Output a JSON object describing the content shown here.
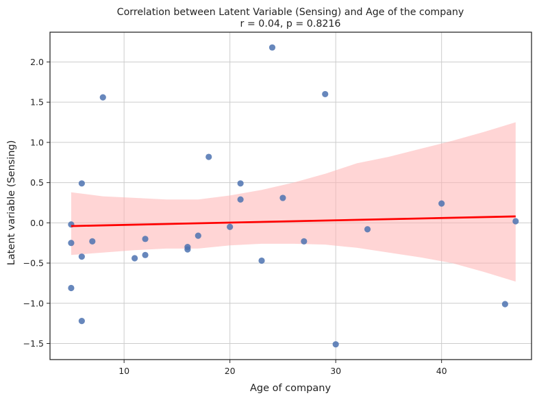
{
  "chart_data": {
    "type": "scatter",
    "title": "Correlation between Latent Variable (Sensing) and Age of the company",
    "subtitle": "r = 0.04, p = 0.8216",
    "xlabel": "Age of company",
    "ylabel": "Latent variable (Sensing)",
    "xlim": [
      3,
      48.5
    ],
    "ylim": [
      -1.7,
      2.37
    ],
    "xticks": [
      10,
      20,
      30,
      40
    ],
    "yticks": [
      -1.5,
      -1.0,
      -0.5,
      0.0,
      0.5,
      1.0,
      1.5,
      2.0
    ],
    "xtick_labels": [
      "10",
      "20",
      "30",
      "40"
    ],
    "ytick_labels": [
      "−1.5",
      "−1.0",
      "−0.5",
      "0.0",
      "0.5",
      "1.0",
      "1.5",
      "2.0"
    ],
    "grid": true,
    "points": [
      {
        "x": 5,
        "y": -0.02
      },
      {
        "x": 5,
        "y": -0.25
      },
      {
        "x": 5,
        "y": -0.81
      },
      {
        "x": 6,
        "y": 0.49
      },
      {
        "x": 6,
        "y": -0.42
      },
      {
        "x": 6,
        "y": -1.22
      },
      {
        "x": 7,
        "y": -0.23
      },
      {
        "x": 8,
        "y": 1.56
      },
      {
        "x": 11,
        "y": -0.44
      },
      {
        "x": 12,
        "y": -0.2
      },
      {
        "x": 12,
        "y": -0.4
      },
      {
        "x": 16,
        "y": -0.3
      },
      {
        "x": 16,
        "y": -0.33
      },
      {
        "x": 17,
        "y": -0.16
      },
      {
        "x": 18,
        "y": 0.82
      },
      {
        "x": 20,
        "y": -0.05
      },
      {
        "x": 21,
        "y": 0.49
      },
      {
        "x": 21,
        "y": 0.29
      },
      {
        "x": 23,
        "y": -0.47
      },
      {
        "x": 24,
        "y": 2.18
      },
      {
        "x": 25,
        "y": 0.31
      },
      {
        "x": 27,
        "y": -0.23
      },
      {
        "x": 29,
        "y": 1.6
      },
      {
        "x": 30,
        "y": -1.51
      },
      {
        "x": 33,
        "y": -0.08
      },
      {
        "x": 40,
        "y": 0.24
      },
      {
        "x": 46,
        "y": -1.01
      },
      {
        "x": 47,
        "y": 0.02
      }
    ],
    "regression": {
      "x": [
        5,
        47
      ],
      "y": [
        -0.04,
        0.08
      ]
    },
    "confidence_band": {
      "x": [
        5,
        8,
        11,
        14,
        17,
        20,
        23,
        26,
        29,
        32,
        35,
        38,
        41,
        44,
        47
      ],
      "upper": [
        0.38,
        0.33,
        0.31,
        0.29,
        0.29,
        0.34,
        0.41,
        0.5,
        0.61,
        0.74,
        0.82,
        0.92,
        1.02,
        1.13,
        1.25
      ],
      "lower": [
        -0.4,
        -0.37,
        -0.34,
        -0.32,
        -0.32,
        -0.28,
        -0.26,
        -0.26,
        -0.27,
        -0.31,
        -0.37,
        -0.43,
        -0.5,
        -0.61,
        -0.73
      ]
    },
    "colors": {
      "points": "#4c72b0",
      "regression_line": "#ff0000",
      "confidence_band": "#ffb3b3",
      "grid": "#cccccc",
      "axes": "#222222"
    }
  }
}
